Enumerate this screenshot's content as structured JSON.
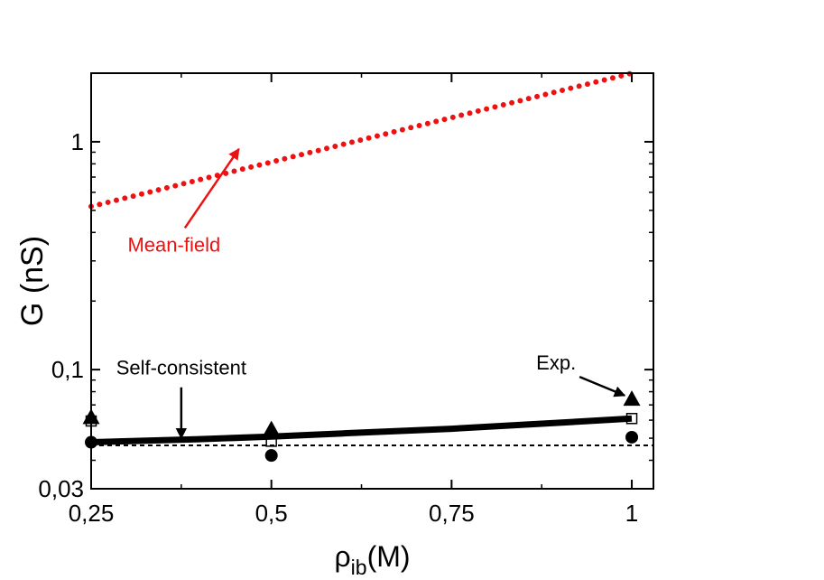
{
  "chart_data": {
    "type": "line",
    "title": "",
    "xlabel": "ρ",
    "xlabel_sub": "ib",
    "xlabel_suffix": "(M)",
    "ylabel": "G (nS)",
    "xlim": [
      0.25,
      1.03
    ],
    "ylim": [
      0.03,
      2.0
    ],
    "x_scale": "linear",
    "y_scale": "log",
    "grid": false,
    "x_ticks": [
      {
        "value": 0.25,
        "label": "0,25"
      },
      {
        "value": 0.5,
        "label": "0,5"
      },
      {
        "value": 0.75,
        "label": "0,75"
      },
      {
        "value": 1.0,
        "label": "1"
      }
    ],
    "y_ticks": [
      {
        "value": 0.03,
        "label": "0,03"
      },
      {
        "value": 0.1,
        "label": "0,1"
      },
      {
        "value": 1,
        "label": "1"
      }
    ],
    "series": [
      {
        "name": "Mean-field",
        "style": "dotted",
        "color": "#ee1111",
        "x": [
          0.25,
          1.0
        ],
        "y": [
          0.52,
          2.0
        ]
      },
      {
        "name": "Self-consistent",
        "style": "thick-solid",
        "color": "#000000",
        "x": [
          0.25,
          0.4,
          0.5,
          0.6,
          0.75,
          0.9,
          1.0
        ],
        "y": [
          0.048,
          0.0495,
          0.0508,
          0.0525,
          0.055,
          0.0585,
          0.061
        ]
      },
      {
        "name": "",
        "style": "dashed",
        "color": "#000000",
        "x": [
          0.25,
          1.03
        ],
        "y": [
          0.0465,
          0.0465
        ]
      }
    ],
    "markers": [
      {
        "shape": "triangle",
        "points": [
          [
            0.25,
            0.0615
          ],
          [
            0.5,
            0.0545
          ],
          [
            1.0,
            0.074
          ]
        ]
      },
      {
        "shape": "circle",
        "points": [
          [
            0.25,
            0.048
          ],
          [
            0.5,
            0.042
          ],
          [
            1.0,
            0.0505
          ]
        ]
      },
      {
        "shape": "square",
        "points": [
          [
            0.25,
            0.0595
          ],
          [
            0.5,
            0.0485
          ],
          [
            1.0,
            0.061
          ]
        ]
      }
    ],
    "annotations": [
      {
        "text": "Mean-field",
        "color": "#ee1111",
        "x": 0.365,
        "y": 0.33,
        "arrow_to": [
          0.455,
          0.93
        ]
      },
      {
        "text": "Self-consistent",
        "color": "#000000",
        "x": 0.375,
        "y": 0.095,
        "arrow_to": [
          0.375,
          0.05
        ]
      },
      {
        "text": "Exp.",
        "color": "#000000",
        "x": 0.895,
        "y": 0.1,
        "arrow_to": [
          0.99,
          0.077
        ]
      }
    ]
  }
}
